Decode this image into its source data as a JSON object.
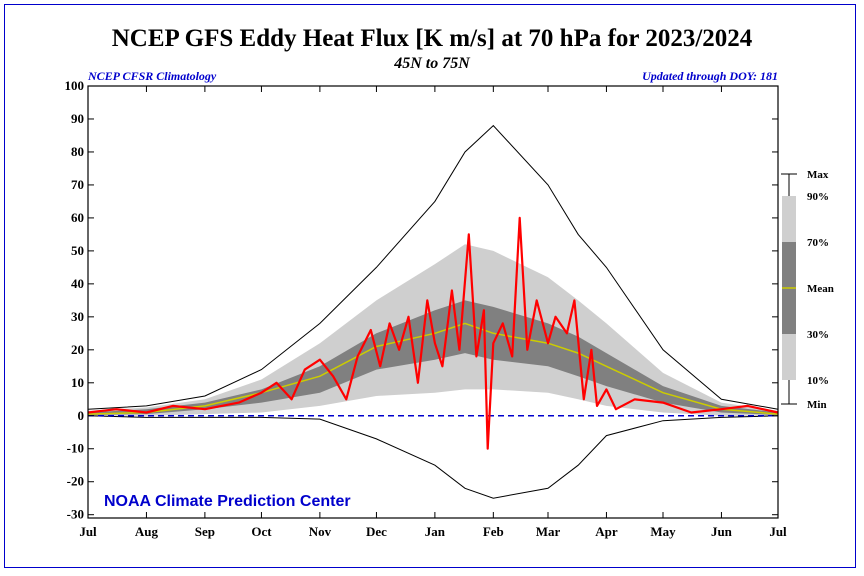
{
  "title": "NCEP GFS Eddy Heat Flux [K m/s] at 70 hPa for 2023/2024",
  "subtitle": "45N to 75N",
  "left_note": "NCEP CFSR Climatology",
  "right_note": "Updated through DOY: 181",
  "credit": "NOAA Climate Prediction Center",
  "colors": {
    "frame": "#0000cc",
    "observed": "#ff0000",
    "mean": "#cccc00",
    "band_10_90": "#cfcfcf",
    "band_30_70": "#808080",
    "minmax": "#000000",
    "zero_line": "#0000cc"
  },
  "chart_data": {
    "type": "line",
    "xlabel": "",
    "ylabel": "",
    "ylim": [
      -31,
      100
    ],
    "y_ticks": [
      -30,
      -20,
      -10,
      0,
      10,
      20,
      30,
      40,
      50,
      60,
      70,
      80,
      90,
      100
    ],
    "x_ticks": [
      {
        "label": "Jul",
        "day": 0
      },
      {
        "label": "Aug",
        "day": 31
      },
      {
        "label": "Sep",
        "day": 62
      },
      {
        "label": "Oct",
        "day": 92
      },
      {
        "label": "Nov",
        "day": 123
      },
      {
        "label": "Dec",
        "day": 153
      },
      {
        "label": "Jan",
        "day": 184
      },
      {
        "label": "Feb",
        "day": 215
      },
      {
        "label": "Mar",
        "day": 244
      },
      {
        "label": "Apr",
        "day": 275
      },
      {
        "label": "May",
        "day": 305
      },
      {
        "label": "Jun",
        "day": 336
      },
      {
        "label": "Jul",
        "day": 366
      }
    ],
    "legend": {
      "placement": "right",
      "labels": [
        "Max",
        "90%",
        "70%",
        "Mean",
        "30%",
        "10%",
        "Min"
      ]
    },
    "climatology": {
      "days": [
        0,
        31,
        62,
        92,
        123,
        153,
        184,
        200,
        215,
        244,
        260,
        275,
        305,
        336,
        366
      ],
      "max": [
        2,
        3,
        6,
        14,
        28,
        45,
        65,
        80,
        88,
        70,
        55,
        45,
        20,
        5,
        2
      ],
      "p90": [
        1.5,
        2.5,
        5,
        11,
        22,
        35,
        46,
        52,
        50,
        42,
        35,
        28,
        13,
        4,
        1.5
      ],
      "p70": [
        1,
        2,
        4,
        8,
        15,
        25,
        32,
        35,
        33,
        28,
        24,
        19,
        9,
        3,
        1
      ],
      "mean": [
        0.5,
        1,
        3,
        7,
        12,
        21,
        25,
        28,
        25,
        22,
        19,
        15,
        7,
        2,
        0.5
      ],
      "p30": [
        0.2,
        0.5,
        2,
        4,
        7,
        14,
        17,
        19,
        17,
        15,
        12,
        9,
        4,
        1,
        0.2
      ],
      "p10": [
        0,
        0,
        0.5,
        1,
        3,
        6,
        7,
        8,
        8,
        7,
        5,
        3,
        1,
        0,
        0
      ],
      "min": [
        0,
        -0.5,
        -0.5,
        -0.5,
        -1,
        -7,
        -15,
        -22,
        -25,
        -22,
        -15,
        -6,
        -1.5,
        -0.5,
        0
      ]
    },
    "series": [
      {
        "name": "2023/2024",
        "days": [
          0,
          15,
          31,
          45,
          62,
          80,
          92,
          100,
          108,
          115,
          123,
          130,
          137,
          143,
          150,
          155,
          160,
          165,
          170,
          175,
          180,
          184,
          188,
          193,
          197,
          202,
          206,
          210,
          212,
          215,
          220,
          225,
          229,
          233,
          238,
          244,
          248,
          254,
          258,
          263,
          267,
          270,
          275,
          280,
          290,
          305,
          320,
          336,
          350,
          366
        ],
        "values": [
          1,
          2,
          1,
          3,
          2,
          4,
          7,
          10,
          5,
          14,
          17,
          12,
          5,
          18,
          26,
          15,
          28,
          20,
          30,
          10,
          35,
          22,
          15,
          38,
          20,
          55,
          18,
          32,
          -10,
          22,
          28,
          18,
          60,
          20,
          35,
          22,
          30,
          25,
          35,
          5,
          20,
          3,
          8,
          2,
          5,
          4,
          1,
          2,
          3,
          1
        ]
      }
    ]
  }
}
